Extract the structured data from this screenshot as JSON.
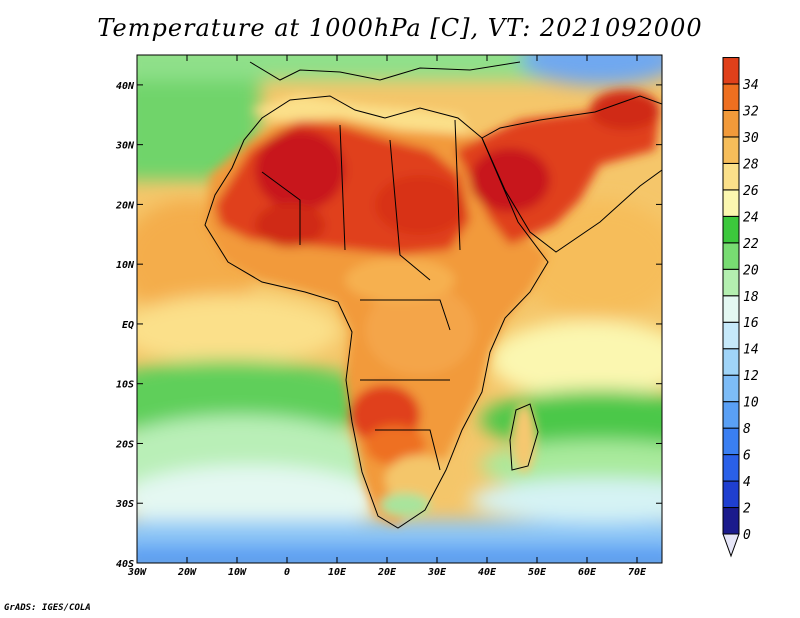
{
  "title": "Temperature at 1000hPa [C], VT: 2021092000",
  "credit": "GrADS: IGES/COLA",
  "map": {
    "lon_labels": [
      "30W",
      "20W",
      "10W",
      "0",
      "10E",
      "20E",
      "30E",
      "40E",
      "50E",
      "60E",
      "70E"
    ],
    "lat_labels": [
      "40N",
      "30N",
      "20N",
      "10N",
      "EQ",
      "10S",
      "20S",
      "30S",
      "40S"
    ],
    "lon_range": [
      -30,
      75
    ],
    "lat_range": [
      -40,
      45
    ]
  },
  "colorbar": {
    "levels": [
      "0",
      "2",
      "4",
      "6",
      "8",
      "10",
      "12",
      "14",
      "16",
      "18",
      "20",
      "22",
      "24",
      "26",
      "28",
      "30",
      "32",
      "34"
    ],
    "colors": [
      "#1b1b8c",
      "#1f3fd0",
      "#2a60e8",
      "#3a7ff2",
      "#5aa0f5",
      "#7dbcf7",
      "#a0d4f8",
      "#c6e9fa",
      "#e4f8f2",
      "#b4efb0",
      "#78dc72",
      "#3cc83c",
      "#fbf7b0",
      "#fbe08a",
      "#f6bd5a",
      "#f29a3a",
      "#ee6f20",
      "#e0401a",
      "#c8141a"
    ],
    "range": [
      0,
      34
    ]
  }
}
